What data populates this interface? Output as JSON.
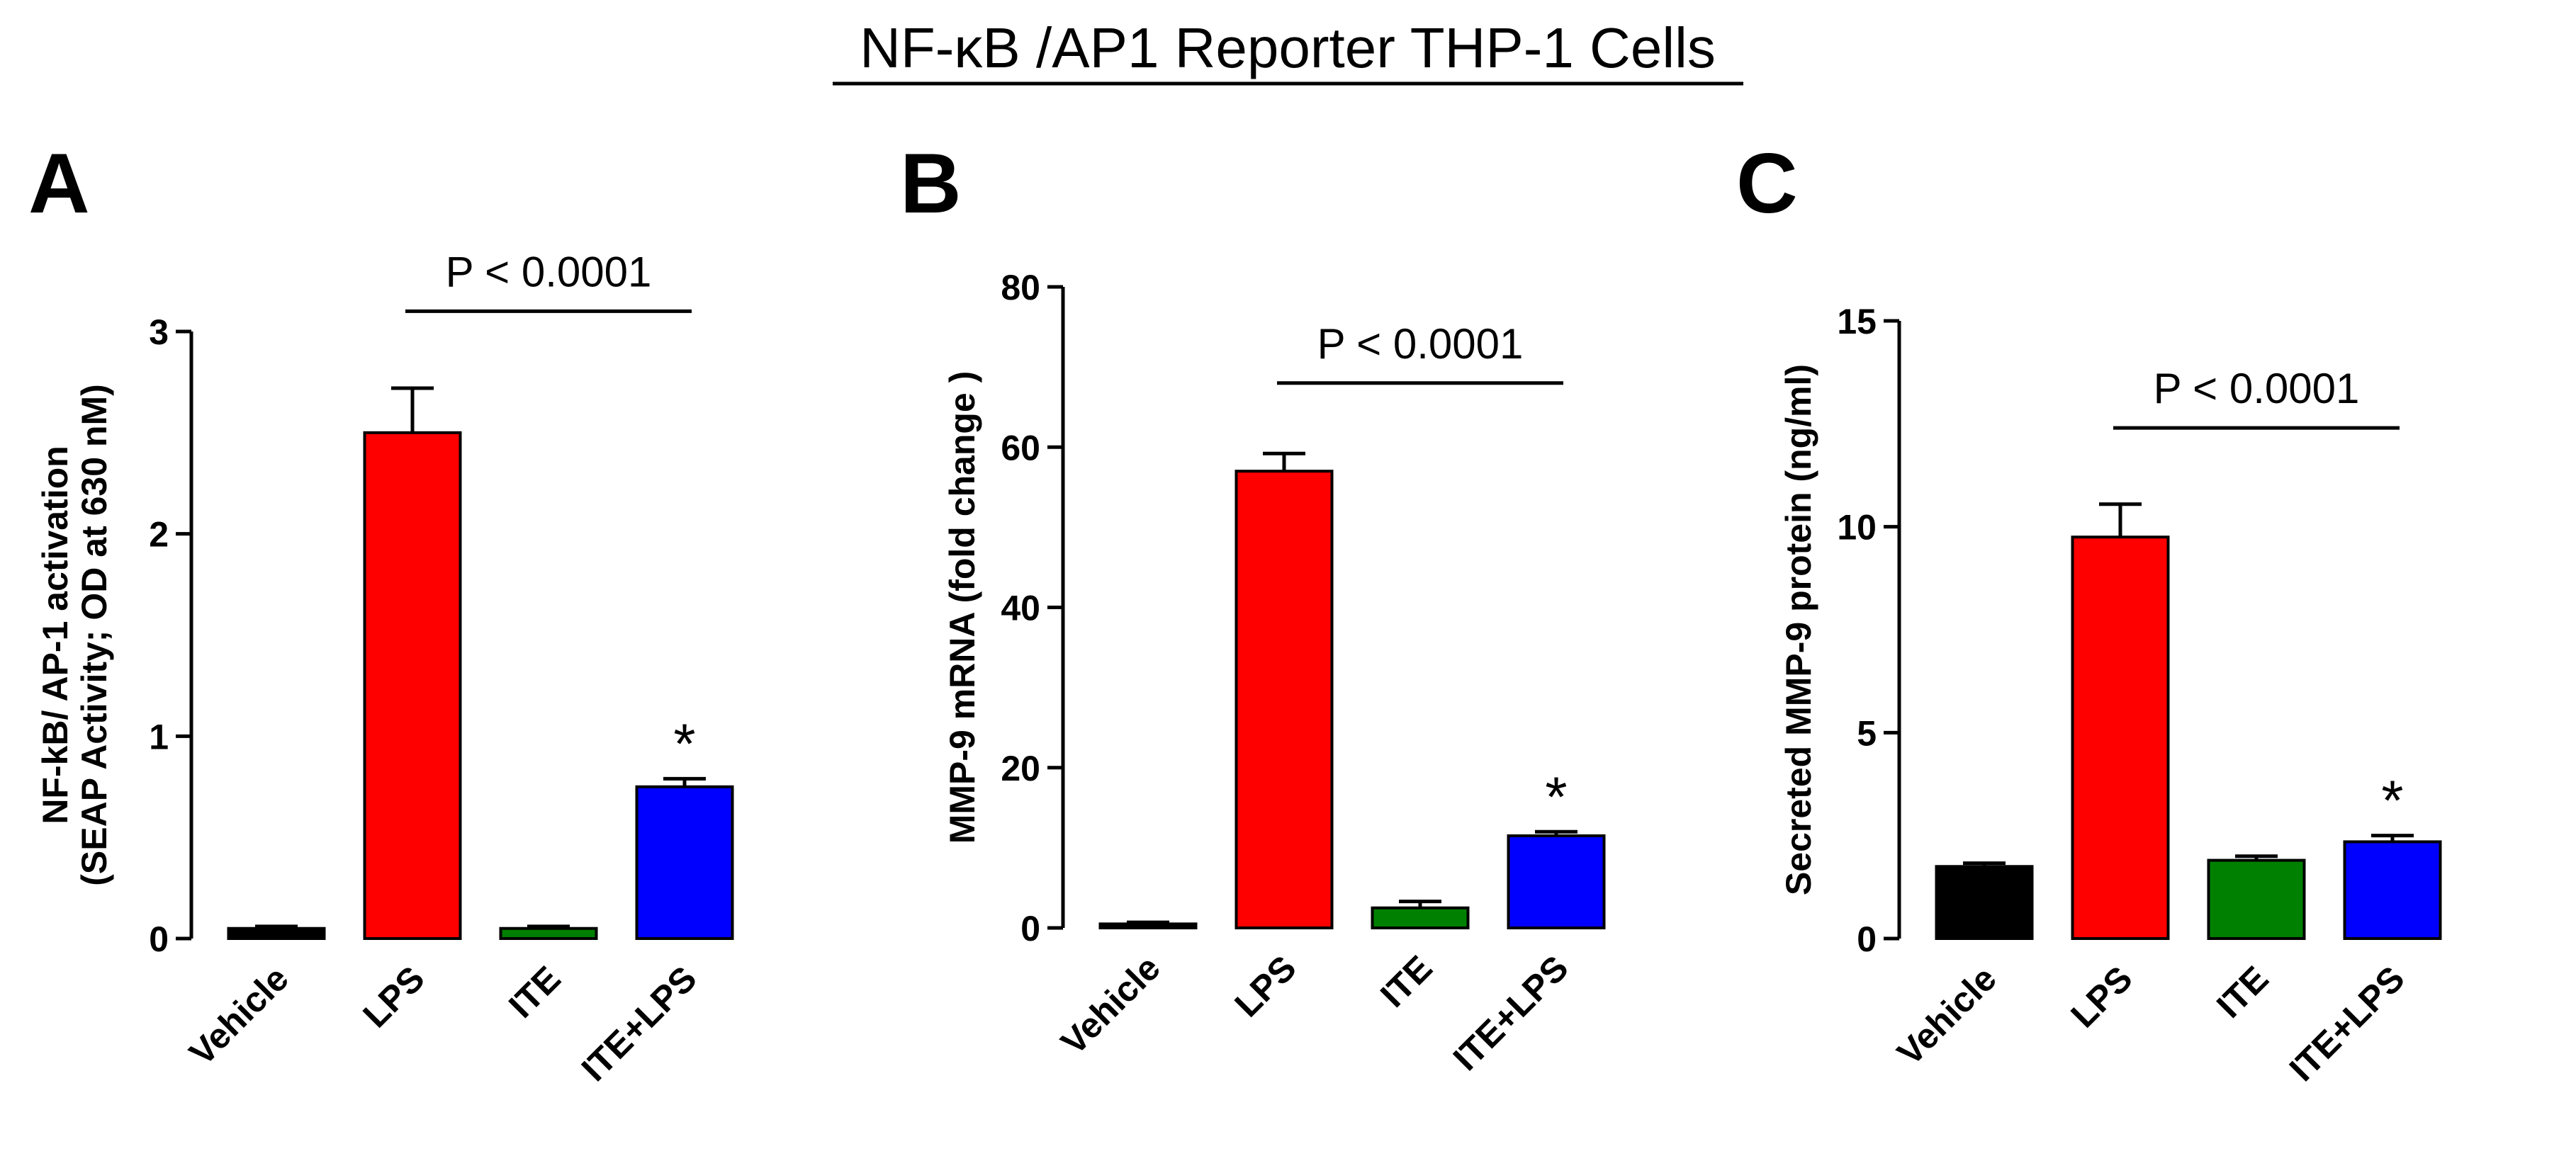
{
  "figure": {
    "title": "NF-κB /AP1 Reporter THP-1 Cells"
  },
  "colors": {
    "Vehicle": "#000000",
    "LPS": "#ff0000",
    "ITE": "#008000",
    "ITE+LPS": "#0000ff"
  },
  "chart_data": [
    {
      "type": "bar",
      "panel": "A",
      "categories": [
        "Vehicle",
        "LPS",
        "ITE",
        "ITE+LPS"
      ],
      "values": [
        0.05,
        2.5,
        0.05,
        0.75
      ],
      "errors": [
        0.01,
        0.22,
        0.01,
        0.04
      ],
      "ylabel_line1": "NF-kB/ AP-1 activation",
      "ylabel_line2": "(SEAP Activity; OD at 630 nM)",
      "ylim": [
        0,
        3
      ],
      "yticks": [
        0,
        1,
        2,
        3
      ],
      "significance": {
        "label": "P < 0.0001",
        "from": "LPS",
        "to": "ITE+LPS",
        "y": 3.1
      },
      "star": {
        "label": "*",
        "category": "ITE+LPS"
      }
    },
    {
      "type": "bar",
      "panel": "B",
      "categories": [
        "Vehicle",
        "LPS",
        "ITE",
        "ITE+LPS"
      ],
      "values": [
        0.5,
        57,
        2.5,
        11.5
      ],
      "errors": [
        0.2,
        2.2,
        0.8,
        0.5
      ],
      "ylabel_line1": "MMP-9 mRNA (fold change )",
      "ylabel_line2": "",
      "ylim": [
        0,
        80
      ],
      "yticks": [
        0,
        20,
        40,
        60,
        80
      ],
      "significance": {
        "label": "P < 0.0001",
        "from": "LPS",
        "to": "ITE+LPS",
        "y": 68
      },
      "star": {
        "label": "*",
        "category": "ITE+LPS"
      }
    },
    {
      "type": "bar",
      "panel": "C",
      "categories": [
        "Vehicle",
        "LPS",
        "ITE",
        "ITE+LPS"
      ],
      "values": [
        1.75,
        9.75,
        1.9,
        2.35
      ],
      "errors": [
        0.08,
        0.8,
        0.1,
        0.15
      ],
      "ylabel_line1": "Secreted MMP-9 protein (ng/ml)",
      "ylabel_line2": "",
      "ylim": [
        0,
        15
      ],
      "yticks": [
        0,
        5,
        10,
        15
      ],
      "significance": {
        "label": "P < 0.0001",
        "from": "LPS",
        "to": "ITE+LPS",
        "y": 12.4
      },
      "star": {
        "label": "*",
        "category": "ITE+LPS"
      }
    }
  ]
}
